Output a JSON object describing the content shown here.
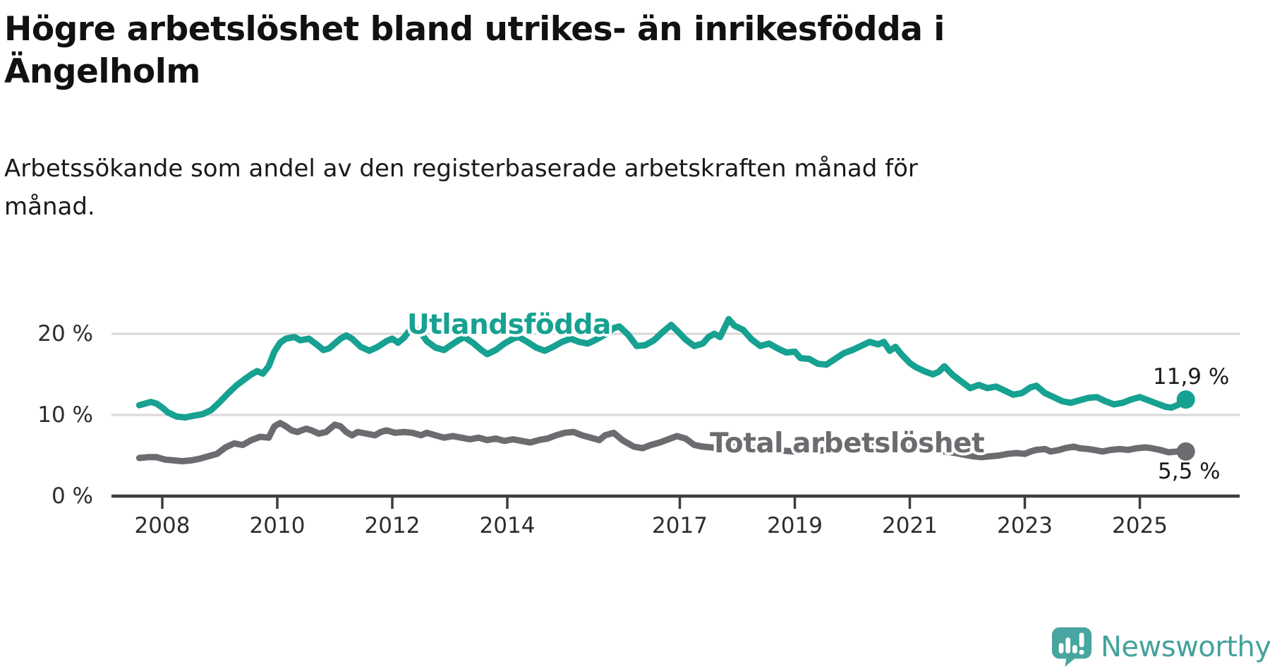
{
  "header": {
    "title": "Högre arbetslöshet bland utrikes- än inrikesfödda i Ängelholm",
    "title_lines": [
      "Högre arbetslöshet bland utrikes- än inrikesfödda i",
      "Ängelholm"
    ],
    "subtitle": "Arbetssökande som andel av den registerbaserade arbetskraften månad för månad.",
    "subtitle_lines": [
      "Arbetssökande som andel av den registerbaserade arbetskraften månad för",
      "månad."
    ]
  },
  "chart_data": {
    "type": "line",
    "title": "Högre arbetslöshet bland utrikes- än inrikesfödda i Ängelholm",
    "xlabel": "",
    "ylabel": "",
    "x_axis": {
      "ticks": [
        2008,
        2010,
        2012,
        2014,
        2017,
        2019,
        2021,
        2023,
        2025
      ],
      "labels": [
        "2008",
        "2010",
        "2012",
        "2014",
        "2017",
        "2019",
        "2021",
        "2023",
        "2025"
      ],
      "range": [
        2007.1,
        2026.7
      ]
    },
    "y_axis": {
      "ticks": [
        0,
        10,
        20
      ],
      "labels": [
        "0 %",
        "10 %",
        "20 %"
      ],
      "gridlines": [
        10,
        20
      ],
      "range": [
        0,
        24.5
      ]
    },
    "colors": {
      "grid": "#d8d8d8",
      "axis": "#3d3d3d"
    },
    "series": [
      {
        "name": "Utlandsfödda",
        "color": "#16a191",
        "end_label": "11,9 %",
        "end_value": 11.9,
        "points": [
          [
            2007.6,
            11.2
          ],
          [
            2007.7,
            11.4
          ],
          [
            2007.8,
            11.6
          ],
          [
            2007.9,
            11.4
          ],
          [
            2008.0,
            10.9
          ],
          [
            2008.1,
            10.3
          ],
          [
            2008.25,
            9.8
          ],
          [
            2008.4,
            9.7
          ],
          [
            2008.55,
            9.9
          ],
          [
            2008.7,
            10.1
          ],
          [
            2008.85,
            10.6
          ],
          [
            2009.0,
            11.6
          ],
          [
            2009.15,
            12.7
          ],
          [
            2009.3,
            13.7
          ],
          [
            2009.45,
            14.5
          ],
          [
            2009.55,
            15.0
          ],
          [
            2009.65,
            15.4
          ],
          [
            2009.75,
            15.1
          ],
          [
            2009.85,
            16.0
          ],
          [
            2009.95,
            17.8
          ],
          [
            2010.05,
            18.9
          ],
          [
            2010.15,
            19.4
          ],
          [
            2010.3,
            19.6
          ],
          [
            2010.4,
            19.2
          ],
          [
            2010.55,
            19.4
          ],
          [
            2010.7,
            18.6
          ],
          [
            2010.8,
            18.0
          ],
          [
            2010.9,
            18.2
          ],
          [
            2011.0,
            18.8
          ],
          [
            2011.1,
            19.4
          ],
          [
            2011.2,
            19.8
          ],
          [
            2011.3,
            19.4
          ],
          [
            2011.45,
            18.4
          ],
          [
            2011.6,
            17.9
          ],
          [
            2011.75,
            18.4
          ],
          [
            2011.9,
            19.1
          ],
          [
            2012.0,
            19.4
          ],
          [
            2012.1,
            18.9
          ],
          [
            2012.2,
            19.5
          ],
          [
            2012.3,
            20.4
          ],
          [
            2012.4,
            20.7
          ],
          [
            2012.5,
            20.1
          ],
          [
            2012.6,
            19.1
          ],
          [
            2012.75,
            18.3
          ],
          [
            2012.9,
            18.0
          ],
          [
            2013.0,
            18.5
          ],
          [
            2013.15,
            19.2
          ],
          [
            2013.25,
            19.6
          ],
          [
            2013.4,
            18.9
          ],
          [
            2013.55,
            18.0
          ],
          [
            2013.65,
            17.5
          ],
          [
            2013.8,
            18.0
          ],
          [
            2013.95,
            18.8
          ],
          [
            2014.1,
            19.4
          ],
          [
            2014.2,
            19.6
          ],
          [
            2014.35,
            19.0
          ],
          [
            2014.5,
            18.3
          ],
          [
            2014.65,
            17.9
          ],
          [
            2014.8,
            18.4
          ],
          [
            2014.95,
            19.0
          ],
          [
            2015.1,
            19.4
          ],
          [
            2015.25,
            19.0
          ],
          [
            2015.4,
            18.8
          ],
          [
            2015.55,
            19.3
          ],
          [
            2015.7,
            19.9
          ],
          [
            2015.85,
            20.7
          ],
          [
            2015.95,
            20.9
          ],
          [
            2016.1,
            19.9
          ],
          [
            2016.25,
            18.5
          ],
          [
            2016.4,
            18.6
          ],
          [
            2016.55,
            19.2
          ],
          [
            2016.7,
            20.2
          ],
          [
            2016.85,
            21.1
          ],
          [
            2016.95,
            20.4
          ],
          [
            2017.1,
            19.3
          ],
          [
            2017.25,
            18.5
          ],
          [
            2017.4,
            18.8
          ],
          [
            2017.5,
            19.6
          ],
          [
            2017.6,
            20.0
          ],
          [
            2017.7,
            19.6
          ],
          [
            2017.85,
            21.8
          ],
          [
            2017.95,
            21.0
          ],
          [
            2018.1,
            20.5
          ],
          [
            2018.25,
            19.3
          ],
          [
            2018.4,
            18.5
          ],
          [
            2018.55,
            18.8
          ],
          [
            2018.7,
            18.2
          ],
          [
            2018.85,
            17.7
          ],
          [
            2019.0,
            17.8
          ],
          [
            2019.1,
            17.0
          ],
          [
            2019.25,
            16.9
          ],
          [
            2019.4,
            16.3
          ],
          [
            2019.55,
            16.2
          ],
          [
            2019.7,
            16.9
          ],
          [
            2019.85,
            17.6
          ],
          [
            2020.0,
            18.0
          ],
          [
            2020.15,
            18.5
          ],
          [
            2020.3,
            19.0
          ],
          [
            2020.45,
            18.7
          ],
          [
            2020.55,
            19.0
          ],
          [
            2020.65,
            17.9
          ],
          [
            2020.75,
            18.4
          ],
          [
            2020.85,
            17.5
          ],
          [
            2021.0,
            16.4
          ],
          [
            2021.1,
            15.9
          ],
          [
            2021.25,
            15.4
          ],
          [
            2021.4,
            15.0
          ],
          [
            2021.5,
            15.3
          ],
          [
            2021.6,
            16.0
          ],
          [
            2021.75,
            14.9
          ],
          [
            2021.9,
            14.1
          ],
          [
            2022.05,
            13.3
          ],
          [
            2022.2,
            13.7
          ],
          [
            2022.35,
            13.3
          ],
          [
            2022.5,
            13.5
          ],
          [
            2022.65,
            13.0
          ],
          [
            2022.8,
            12.5
          ],
          [
            2022.95,
            12.7
          ],
          [
            2023.1,
            13.4
          ],
          [
            2023.2,
            13.6
          ],
          [
            2023.35,
            12.7
          ],
          [
            2023.5,
            12.2
          ],
          [
            2023.65,
            11.7
          ],
          [
            2023.8,
            11.5
          ],
          [
            2023.95,
            11.8
          ],
          [
            2024.1,
            12.1
          ],
          [
            2024.25,
            12.2
          ],
          [
            2024.4,
            11.7
          ],
          [
            2024.55,
            11.3
          ],
          [
            2024.7,
            11.5
          ],
          [
            2024.85,
            11.9
          ],
          [
            2025.0,
            12.2
          ],
          [
            2025.15,
            11.8
          ],
          [
            2025.3,
            11.4
          ],
          [
            2025.45,
            11.0
          ],
          [
            2025.55,
            10.9
          ],
          [
            2025.65,
            11.2
          ],
          [
            2025.8,
            11.9
          ]
        ]
      },
      {
        "name": "Total arbetslöshet",
        "color": "#6c6c70",
        "end_label": "5,5 %",
        "end_value": 5.5,
        "points": [
          [
            2007.6,
            4.7
          ],
          [
            2007.75,
            4.8
          ],
          [
            2007.9,
            4.8
          ],
          [
            2008.05,
            4.5
          ],
          [
            2008.2,
            4.4
          ],
          [
            2008.35,
            4.3
          ],
          [
            2008.5,
            4.4
          ],
          [
            2008.65,
            4.6
          ],
          [
            2008.8,
            4.9
          ],
          [
            2008.95,
            5.2
          ],
          [
            2009.1,
            6.0
          ],
          [
            2009.25,
            6.5
          ],
          [
            2009.4,
            6.3
          ],
          [
            2009.55,
            6.9
          ],
          [
            2009.7,
            7.3
          ],
          [
            2009.85,
            7.2
          ],
          [
            2009.95,
            8.6
          ],
          [
            2010.05,
            9.0
          ],
          [
            2010.15,
            8.6
          ],
          [
            2010.25,
            8.1
          ],
          [
            2010.35,
            7.9
          ],
          [
            2010.5,
            8.3
          ],
          [
            2010.6,
            8.1
          ],
          [
            2010.72,
            7.7
          ],
          [
            2010.85,
            7.9
          ],
          [
            2011.0,
            8.8
          ],
          [
            2011.1,
            8.6
          ],
          [
            2011.2,
            7.9
          ],
          [
            2011.3,
            7.5
          ],
          [
            2011.4,
            7.9
          ],
          [
            2011.55,
            7.7
          ],
          [
            2011.7,
            7.5
          ],
          [
            2011.8,
            7.9
          ],
          [
            2011.9,
            8.1
          ],
          [
            2012.05,
            7.8
          ],
          [
            2012.2,
            7.9
          ],
          [
            2012.35,
            7.8
          ],
          [
            2012.5,
            7.5
          ],
          [
            2012.6,
            7.8
          ],
          [
            2012.75,
            7.5
          ],
          [
            2012.9,
            7.2
          ],
          [
            2013.05,
            7.4
          ],
          [
            2013.2,
            7.2
          ],
          [
            2013.35,
            7.0
          ],
          [
            2013.5,
            7.2
          ],
          [
            2013.65,
            6.9
          ],
          [
            2013.8,
            7.1
          ],
          [
            2013.95,
            6.8
          ],
          [
            2014.1,
            7.0
          ],
          [
            2014.25,
            6.8
          ],
          [
            2014.4,
            6.6
          ],
          [
            2014.55,
            6.9
          ],
          [
            2014.7,
            7.1
          ],
          [
            2014.85,
            7.5
          ],
          [
            2015.0,
            7.8
          ],
          [
            2015.15,
            7.9
          ],
          [
            2015.3,
            7.5
          ],
          [
            2015.45,
            7.2
          ],
          [
            2015.6,
            6.9
          ],
          [
            2015.7,
            7.5
          ],
          [
            2015.85,
            7.8
          ],
          [
            2016.0,
            6.9
          ],
          [
            2016.1,
            6.5
          ],
          [
            2016.2,
            6.1
          ],
          [
            2016.35,
            5.9
          ],
          [
            2016.5,
            6.3
          ],
          [
            2016.65,
            6.6
          ],
          [
            2016.8,
            7.0
          ],
          [
            2016.95,
            7.4
          ],
          [
            2017.1,
            7.1
          ],
          [
            2017.25,
            6.3
          ],
          [
            2017.4,
            6.1
          ],
          [
            2017.55,
            6.0
          ],
          [
            2017.7,
            5.9
          ],
          [
            2017.85,
            6.0
          ],
          [
            2018.0,
            6.1
          ],
          [
            2018.2,
            5.9
          ],
          [
            2018.4,
            5.8
          ],
          [
            2018.6,
            5.7
          ],
          [
            2018.8,
            5.6
          ],
          [
            2019.0,
            5.5
          ],
          [
            2019.2,
            5.5
          ],
          [
            2019.4,
            5.6
          ],
          [
            2019.6,
            5.7
          ],
          [
            2019.8,
            5.9
          ],
          [
            2020.0,
            6.2
          ],
          [
            2020.2,
            6.6
          ],
          [
            2020.4,
            6.7
          ],
          [
            2020.6,
            6.5
          ],
          [
            2020.8,
            6.3
          ],
          [
            2021.0,
            6.1
          ],
          [
            2021.2,
            5.9
          ],
          [
            2021.4,
            5.7
          ],
          [
            2021.6,
            5.5
          ],
          [
            2021.8,
            5.3
          ],
          [
            2021.95,
            5.1
          ],
          [
            2022.1,
            4.9
          ],
          [
            2022.25,
            4.8
          ],
          [
            2022.4,
            4.9
          ],
          [
            2022.55,
            5.0
          ],
          [
            2022.7,
            5.2
          ],
          [
            2022.85,
            5.3
          ],
          [
            2023.0,
            5.2
          ],
          [
            2023.1,
            5.5
          ],
          [
            2023.2,
            5.7
          ],
          [
            2023.35,
            5.8
          ],
          [
            2023.45,
            5.5
          ],
          [
            2023.6,
            5.7
          ],
          [
            2023.7,
            5.9
          ],
          [
            2023.85,
            6.1
          ],
          [
            2023.95,
            5.9
          ],
          [
            2024.1,
            5.8
          ],
          [
            2024.2,
            5.7
          ],
          [
            2024.35,
            5.5
          ],
          [
            2024.5,
            5.7
          ],
          [
            2024.65,
            5.8
          ],
          [
            2024.8,
            5.7
          ],
          [
            2024.95,
            5.9
          ],
          [
            2025.1,
            6.0
          ],
          [
            2025.2,
            5.9
          ],
          [
            2025.35,
            5.7
          ],
          [
            2025.5,
            5.4
          ],
          [
            2025.65,
            5.5
          ],
          [
            2025.8,
            5.5
          ]
        ]
      }
    ]
  },
  "footer": {
    "brand": "Newsworthy",
    "brand_color": "#43a29c",
    "logo_icon": "bar-chart-speech-bubble-icon"
  }
}
